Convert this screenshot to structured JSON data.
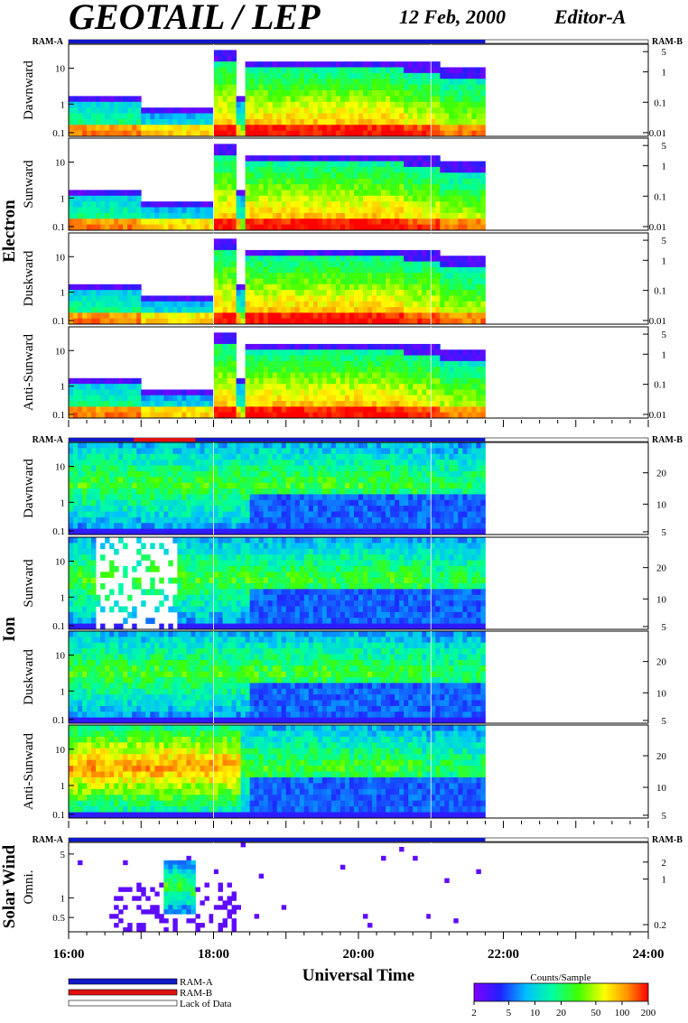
{
  "header": {
    "title": "GEOTAIL / LEP",
    "date": "12 Feb, 2000",
    "editor": "Editor-A"
  },
  "chart_data": {
    "type": "heatmap",
    "x_axis": {
      "label": "Universal Time",
      "range": [
        "16:00",
        "24:00"
      ],
      "ticks": [
        "16:00",
        "18:00",
        "20:00",
        "22:00",
        "24:00"
      ],
      "data_end": "21:45"
    },
    "groups": [
      {
        "name": "Electron",
        "ram_left": "RAM-A",
        "ram_right": "RAM-B",
        "panels": [
          {
            "name": "Dawnward",
            "left_ticks": [
              "10",
              "1",
              "0.1"
            ],
            "right_ticks": [
              "5",
              "1",
              "0.1",
              "0.01"
            ]
          },
          {
            "name": "Sunward",
            "left_ticks": [
              "10",
              "1",
              "0.1"
            ],
            "right_ticks": [
              "5",
              "1",
              "0.1",
              "0.01"
            ]
          },
          {
            "name": "Duskward",
            "left_ticks": [
              "10",
              "1",
              "0.1"
            ],
            "right_ticks": [
              "5",
              "1",
              "0.1",
              "0.01"
            ]
          },
          {
            "name": "Anti-Sunward",
            "left_ticks": [
              "10",
              "1",
              "0.1"
            ],
            "right_ticks": [
              "5",
              "1",
              "0.1",
              "0.01"
            ]
          }
        ]
      },
      {
        "name": "Ion",
        "ram_left": "RAM-A",
        "ram_right": "RAM-B",
        "panels": [
          {
            "name": "Dawnward",
            "left_ticks": [
              "10",
              "1",
              "0.1"
            ],
            "right_ticks": [
              "20",
              "10",
              "5"
            ]
          },
          {
            "name": "Sunward",
            "left_ticks": [
              "10",
              "1",
              "0.1"
            ],
            "right_ticks": [
              "20",
              "10",
              "5"
            ]
          },
          {
            "name": "Duskward",
            "left_ticks": [
              "10",
              "1",
              "0.1"
            ],
            "right_ticks": [
              "20",
              "10",
              "5"
            ]
          },
          {
            "name": "Anti-Sunward",
            "left_ticks": [
              "10",
              "1",
              "0.1"
            ],
            "right_ticks": [
              "20",
              "10",
              "5"
            ]
          }
        ]
      },
      {
        "name": "Solar Wind",
        "ram_left": "RAM-A",
        "ram_right": "RAM-B",
        "panels": [
          {
            "name": "Omni.",
            "left_ticks": [
              "5",
              "1",
              "0.5"
            ],
            "right_ticks": [
              "2",
              "1",
              "0.2"
            ]
          }
        ]
      }
    ],
    "ram_status": [
      {
        "label": "RAM-A",
        "color": "#1018c8"
      },
      {
        "label": "RAM-B",
        "color": "#e01010"
      },
      {
        "label": "Lack of Data",
        "color": "#ffffff"
      }
    ],
    "colorbar": {
      "title": "Counts/Sample",
      "ticks": [
        "2",
        "5",
        "10",
        "20",
        "50",
        "100",
        "200"
      ],
      "colors": [
        "#8000ff",
        "#2020ff",
        "#00c0ff",
        "#00ffa0",
        "#40ff00",
        "#ffff00",
        "#ff9000",
        "#ff0000"
      ]
    }
  }
}
